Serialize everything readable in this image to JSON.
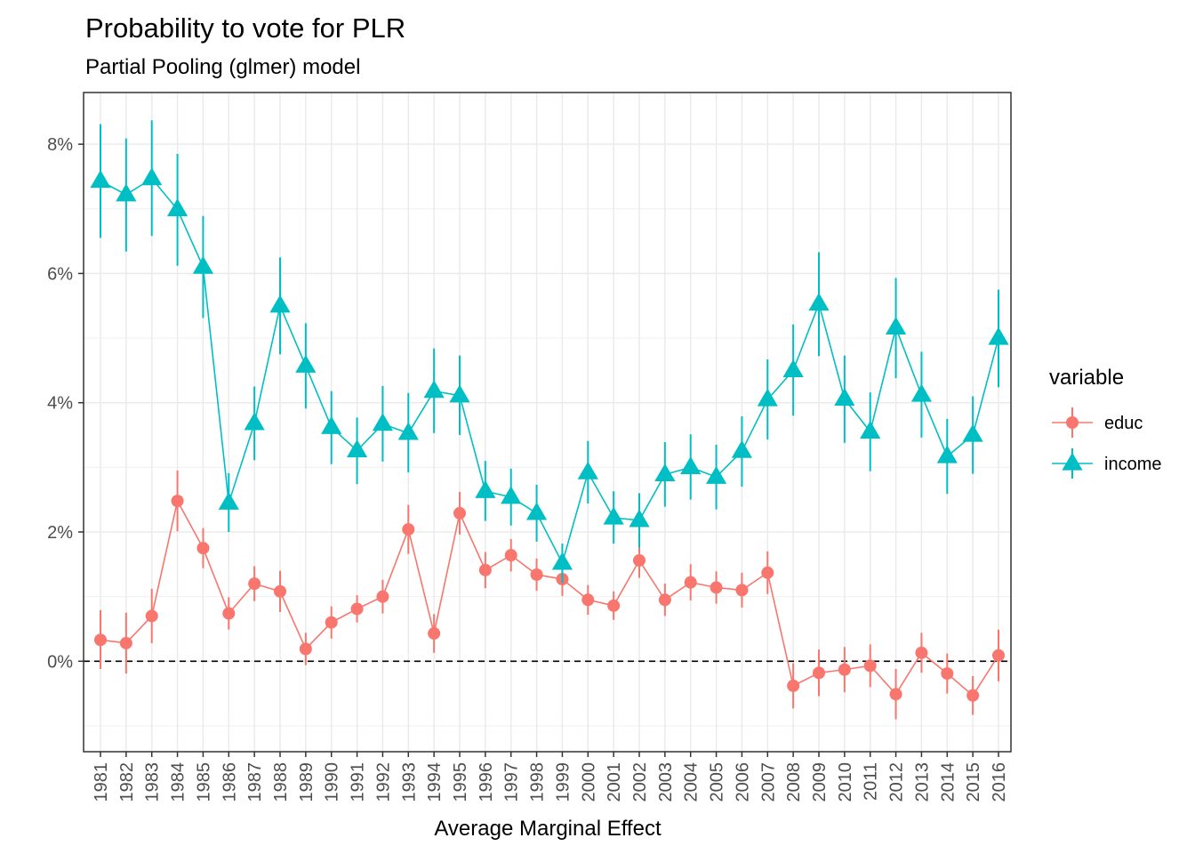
{
  "chart_data": {
    "type": "line",
    "title": "Probability to vote for PLR",
    "subtitle": "Partial Pooling (glmer) model",
    "xlabel": "Average Marginal Effect",
    "ylabel": "",
    "categories": [
      "1981",
      "1982",
      "1983",
      "1984",
      "1985",
      "1986",
      "1987",
      "1988",
      "1989",
      "1990",
      "1991",
      "1992",
      "1993",
      "1994",
      "1995",
      "1996",
      "1997",
      "1998",
      "1999",
      "2000",
      "2001",
      "2002",
      "2003",
      "2004",
      "2005",
      "2006",
      "2007",
      "2008",
      "2009",
      "2010",
      "2011",
      "2012",
      "2013",
      "2014",
      "2015",
      "2016"
    ],
    "ylim": [
      -1.4,
      8.8
    ],
    "yticks": [
      0,
      2,
      4,
      6,
      8
    ],
    "ytick_labels": [
      "0%",
      "2%",
      "4%",
      "6%",
      "8%"
    ],
    "reference_line": 0,
    "grid": true,
    "legend": {
      "title": "variable",
      "position": "right"
    },
    "series": [
      {
        "name": "educ",
        "color": "#F8766D",
        "marker": "circle",
        "values": [
          0.33,
          0.28,
          0.7,
          2.48,
          1.75,
          0.74,
          1.2,
          1.08,
          0.19,
          0.6,
          0.81,
          1.0,
          2.04,
          0.43,
          2.29,
          1.41,
          1.64,
          1.34,
          1.27,
          0.95,
          0.86,
          1.56,
          0.95,
          1.22,
          1.14,
          1.1,
          1.37,
          -0.38,
          -0.18,
          -0.13,
          -0.07,
          -0.51,
          0.13,
          -0.19,
          -0.53,
          0.09
        ],
        "lower": [
          -0.12,
          -0.19,
          0.28,
          2.01,
          1.44,
          0.49,
          0.93,
          0.76,
          -0.06,
          0.35,
          0.6,
          0.74,
          1.66,
          0.13,
          1.96,
          1.13,
          1.39,
          1.09,
          1.01,
          0.72,
          0.64,
          1.29,
          0.7,
          0.94,
          0.89,
          0.83,
          1.04,
          -0.73,
          -0.54,
          -0.48,
          -0.4,
          -0.9,
          -0.18,
          -0.5,
          -0.83,
          -0.31
        ],
        "upper": [
          0.79,
          0.75,
          1.12,
          2.95,
          2.06,
          0.99,
          1.47,
          1.4,
          0.44,
          0.85,
          1.02,
          1.26,
          2.42,
          0.73,
          2.62,
          1.69,
          1.89,
          1.59,
          1.53,
          1.18,
          1.08,
          1.83,
          1.2,
          1.5,
          1.39,
          1.37,
          1.7,
          -0.03,
          0.18,
          0.22,
          0.26,
          -0.12,
          0.44,
          0.12,
          -0.23,
          0.49
        ]
      },
      {
        "name": "income",
        "color": "#00BFC4",
        "marker": "triangle",
        "values": [
          7.43,
          7.22,
          7.47,
          6.99,
          6.1,
          2.45,
          3.68,
          5.5,
          4.57,
          3.62,
          3.26,
          3.67,
          3.53,
          4.18,
          4.11,
          2.63,
          2.54,
          2.29,
          1.52,
          2.92,
          2.22,
          2.18,
          2.89,
          3.0,
          2.85,
          3.25,
          4.05,
          4.5,
          5.53,
          4.06,
          3.55,
          5.16,
          4.12,
          3.17,
          3.5,
          5.0
        ],
        "lower": [
          6.55,
          6.34,
          6.58,
          6.12,
          5.31,
          2.0,
          3.11,
          4.75,
          3.91,
          3.05,
          2.74,
          3.09,
          2.92,
          3.53,
          3.5,
          2.17,
          2.1,
          1.85,
          1.21,
          2.44,
          1.82,
          1.76,
          2.39,
          2.5,
          2.35,
          2.7,
          3.43,
          3.8,
          4.72,
          3.38,
          2.94,
          4.38,
          3.46,
          2.59,
          2.9,
          4.24
        ],
        "upper": [
          8.31,
          8.09,
          8.37,
          7.85,
          6.89,
          2.91,
          4.25,
          6.25,
          5.23,
          4.18,
          3.77,
          4.26,
          4.15,
          4.84,
          4.73,
          3.1,
          2.98,
          2.73,
          1.82,
          3.41,
          2.63,
          2.6,
          3.39,
          3.51,
          3.35,
          3.79,
          4.67,
          5.21,
          6.33,
          4.73,
          4.16,
          5.93,
          4.79,
          3.75,
          4.1,
          5.75
        ]
      }
    ]
  }
}
